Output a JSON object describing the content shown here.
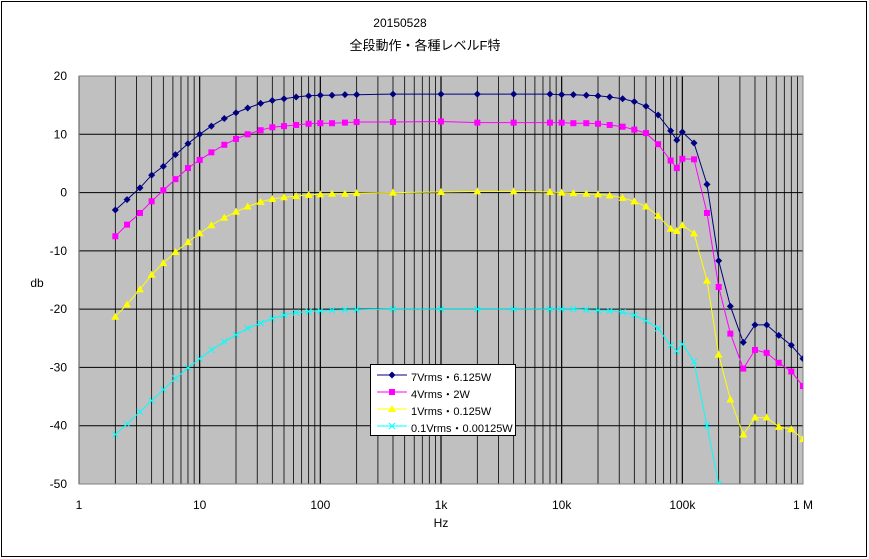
{
  "chart_data": {
    "type": "line",
    "title": "20150528",
    "subtitle": "全段動作・各種レベルF特",
    "xlabel": "Hz",
    "ylabel": "db",
    "xscale": "log",
    "xlim": [
      1,
      1000000
    ],
    "ylim": [
      -50,
      20
    ],
    "yticks": [
      20,
      10,
      0,
      -10,
      -20,
      -30,
      -40,
      -50
    ],
    "ytick_labels": [
      "20",
      "10",
      "0",
      "-10",
      "-20",
      "-30",
      "-40",
      "-50"
    ],
    "xticks": [
      1,
      10,
      100,
      1000,
      10000,
      100000,
      1000000
    ],
    "xtick_labels": [
      "1",
      "10",
      "100",
      "1k",
      "10k",
      "100k",
      "1 M"
    ],
    "grid": true,
    "background": "#c0c0c0",
    "legend_position": "inside-bottom-center",
    "series": [
      {
        "name": "7Vrms・6.125W",
        "color": "#000080",
        "marker": "diamond",
        "points": [
          [
            2,
            -3
          ],
          [
            2.5,
            -1.2
          ],
          [
            3.2,
            0.8
          ],
          [
            4,
            3
          ],
          [
            5,
            4.5
          ],
          [
            6.3,
            6.5
          ],
          [
            8,
            8.4
          ],
          [
            10,
            10
          ],
          [
            12.5,
            11.4
          ],
          [
            16,
            12.7
          ],
          [
            20,
            13.7
          ],
          [
            25,
            14.5
          ],
          [
            32,
            15.3
          ],
          [
            40,
            15.8
          ],
          [
            50,
            16.1
          ],
          [
            63,
            16.4
          ],
          [
            80,
            16.6
          ],
          [
            100,
            16.7
          ],
          [
            125,
            16.7
          ],
          [
            160,
            16.8
          ],
          [
            200,
            16.8
          ],
          [
            400,
            16.9
          ],
          [
            1000,
            16.9
          ],
          [
            2000,
            16.9
          ],
          [
            4000,
            16.9
          ],
          [
            8000,
            16.9
          ],
          [
            10000,
            16.8
          ],
          [
            12500,
            16.8
          ],
          [
            16000,
            16.7
          ],
          [
            20000,
            16.6
          ],
          [
            25000,
            16.4
          ],
          [
            32000,
            16.1
          ],
          [
            40000,
            15.6
          ],
          [
            50000,
            14.8
          ],
          [
            63000,
            13.3
          ],
          [
            80000,
            10.6
          ],
          [
            90000,
            9
          ],
          [
            100000,
            10.4
          ],
          [
            125000,
            8.5
          ],
          [
            160000,
            1.4
          ],
          [
            200000,
            -11.7
          ],
          [
            250000,
            -19.5
          ],
          [
            320000,
            -25.7
          ],
          [
            400000,
            -22.7
          ],
          [
            500000,
            -22.7
          ],
          [
            630000,
            -24.5
          ],
          [
            800000,
            -26.2
          ],
          [
            1000000,
            -28.5
          ]
        ]
      },
      {
        "name": "4Vrms・2W",
        "color": "#ff00ff",
        "marker": "square",
        "points": [
          [
            2,
            -7.5
          ],
          [
            2.5,
            -5.5
          ],
          [
            3.2,
            -3.5
          ],
          [
            4,
            -1.5
          ],
          [
            5,
            0.4
          ],
          [
            6.3,
            2.3
          ],
          [
            8,
            4.2
          ],
          [
            10,
            5.6
          ],
          [
            12.5,
            6.9
          ],
          [
            16,
            8.2
          ],
          [
            20,
            9.2
          ],
          [
            25,
            10
          ],
          [
            32,
            10.7
          ],
          [
            40,
            11.2
          ],
          [
            50,
            11.4
          ],
          [
            63,
            11.6
          ],
          [
            80,
            11.8
          ],
          [
            100,
            11.9
          ],
          [
            125,
            11.9
          ],
          [
            160,
            12
          ],
          [
            200,
            12.1
          ],
          [
            400,
            12.1
          ],
          [
            1000,
            12.2
          ],
          [
            2000,
            12
          ],
          [
            4000,
            12
          ],
          [
            8000,
            12
          ],
          [
            10000,
            12
          ],
          [
            12500,
            11.9
          ],
          [
            16000,
            11.9
          ],
          [
            20000,
            11.8
          ],
          [
            25000,
            11.6
          ],
          [
            32000,
            11.3
          ],
          [
            40000,
            10.8
          ],
          [
            50000,
            10.2
          ],
          [
            63000,
            8.3
          ],
          [
            80000,
            5.5
          ],
          [
            90000,
            4.2
          ],
          [
            100000,
            5.8
          ],
          [
            125000,
            5.7
          ],
          [
            160000,
            -3.5
          ],
          [
            200000,
            -16.2
          ],
          [
            250000,
            -24.2
          ],
          [
            320000,
            -30.2
          ],
          [
            400000,
            -27
          ],
          [
            500000,
            -27.5
          ],
          [
            630000,
            -29.2
          ],
          [
            800000,
            -30.7
          ],
          [
            1000000,
            -33.2
          ]
        ]
      },
      {
        "name": "1Vrms・0.125W",
        "color": "#ffff00",
        "marker": "triangle",
        "points": [
          [
            2,
            -21.3
          ],
          [
            2.5,
            -19.2
          ],
          [
            3.2,
            -16.6
          ],
          [
            4,
            -14.1
          ],
          [
            5,
            -12.1
          ],
          [
            6.3,
            -10.2
          ],
          [
            8,
            -8.5
          ],
          [
            10,
            -7
          ],
          [
            12.5,
            -5.6
          ],
          [
            16,
            -4.3
          ],
          [
            20,
            -3.3
          ],
          [
            25,
            -2.4
          ],
          [
            32,
            -1.6
          ],
          [
            40,
            -1.1
          ],
          [
            50,
            -0.8
          ],
          [
            63,
            -0.6
          ],
          [
            80,
            -0.4
          ],
          [
            100,
            -0.3
          ],
          [
            125,
            -0.2
          ],
          [
            160,
            -0.2
          ],
          [
            200,
            -0.1
          ],
          [
            400,
            0
          ],
          [
            1000,
            0.1
          ],
          [
            2000,
            0.2
          ],
          [
            4000,
            0.2
          ],
          [
            8000,
            0.1
          ],
          [
            10000,
            0
          ],
          [
            12500,
            -0.1
          ],
          [
            16000,
            -0.2
          ],
          [
            20000,
            -0.3
          ],
          [
            25000,
            -0.5
          ],
          [
            32000,
            -0.9
          ],
          [
            40000,
            -1.5
          ],
          [
            50000,
            -2.4
          ],
          [
            63000,
            -4
          ],
          [
            80000,
            -6.2
          ],
          [
            90000,
            -6.6
          ],
          [
            100000,
            -5.6
          ],
          [
            125000,
            -7
          ],
          [
            160000,
            -15.1
          ],
          [
            200000,
            -27.8
          ],
          [
            250000,
            -35.5
          ],
          [
            320000,
            -41.5
          ],
          [
            400000,
            -38.6
          ],
          [
            500000,
            -38.6
          ],
          [
            630000,
            -40.2
          ],
          [
            800000,
            -40.6
          ],
          [
            1000000,
            -42.3
          ]
        ]
      },
      {
        "name": "0.1Vrms・0.00125W",
        "color": "#00ffff",
        "marker": "x",
        "points": [
          [
            2,
            -41.5
          ],
          [
            2.5,
            -39.7
          ],
          [
            3.2,
            -37.6
          ],
          [
            4,
            -35.7
          ],
          [
            5,
            -33.8
          ],
          [
            6.3,
            -31.9
          ],
          [
            8,
            -30.1
          ],
          [
            10,
            -28.5
          ],
          [
            12.5,
            -27
          ],
          [
            16,
            -25.6
          ],
          [
            20,
            -24.4
          ],
          [
            25,
            -23.3
          ],
          [
            32,
            -22.4
          ],
          [
            40,
            -21.6
          ],
          [
            50,
            -21
          ],
          [
            63,
            -20.6
          ],
          [
            80,
            -20.4
          ],
          [
            100,
            -20.3
          ],
          [
            125,
            -20.2
          ],
          [
            160,
            -20.1
          ],
          [
            200,
            -20.1
          ],
          [
            400,
            -20
          ],
          [
            1000,
            -20
          ],
          [
            2000,
            -20
          ],
          [
            4000,
            -20
          ],
          [
            8000,
            -20
          ],
          [
            10000,
            -20
          ],
          [
            12500,
            -20
          ],
          [
            16000,
            -20.1
          ],
          [
            20000,
            -20.2
          ],
          [
            25000,
            -20.3
          ],
          [
            32000,
            -20.5
          ],
          [
            40000,
            -21
          ],
          [
            50000,
            -22
          ],
          [
            63000,
            -23.3
          ],
          [
            80000,
            -26.2
          ],
          [
            90000,
            -27.2
          ],
          [
            100000,
            -26
          ],
          [
            125000,
            -29
          ],
          [
            160000,
            -40
          ],
          [
            200000,
            -50
          ]
        ]
      }
    ]
  }
}
